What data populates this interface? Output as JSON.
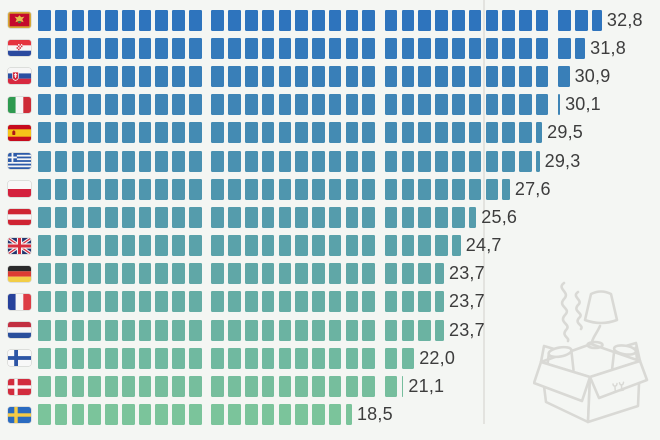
{
  "chart_data": {
    "type": "pictogram_bar",
    "orientation": "horizontal",
    "unit_value": 1,
    "group_size": 10,
    "categories": [
      "Montenegro",
      "Croatia",
      "Slovakia",
      "Italy",
      "Spain",
      "Greece",
      "Poland",
      "Austria",
      "United Kingdom",
      "Germany",
      "France",
      "Netherlands",
      "Finland",
      "Denmark",
      "Sweden"
    ],
    "flag_codes": [
      "me",
      "hr",
      "sk",
      "it",
      "es",
      "gr",
      "pl",
      "at",
      "gb",
      "de",
      "fr",
      "nl",
      "fi",
      "dk",
      "se"
    ],
    "values": [
      32.8,
      31.8,
      30.9,
      30.1,
      29.5,
      29.3,
      27.6,
      25.6,
      24.7,
      23.7,
      23.7,
      23.7,
      22.0,
      21.1,
      18.5
    ],
    "value_labels": [
      "32,8",
      "31,8",
      "30,9",
      "30,1",
      "29,5",
      "29,3",
      "27,6",
      "25,6",
      "24,7",
      "23,7",
      "23,7",
      "23,7",
      "22,0",
      "21,1",
      "18,5"
    ],
    "row_colors": [
      "#2e74bd",
      "#347abb",
      "#397fb8",
      "#3f85b6",
      "#448bb3",
      "#4a91b1",
      "#4f96ae",
      "#559cac",
      "#5aa2aa",
      "#60a7a7",
      "#65ada5",
      "#6bb3a2",
      "#70b9a0",
      "#76be9d",
      "#7bc49b"
    ],
    "label_color": "#3d3d3d",
    "background": "#f4f6f3",
    "grid": "off",
    "reference_line": {
      "x_value": 26,
      "color": "#e3e3df"
    },
    "xlim": [
      0,
      35
    ]
  },
  "watermark": {
    "icon": "open-moving-box-with-lamp-and-steam",
    "color": "#d9d9d5"
  }
}
